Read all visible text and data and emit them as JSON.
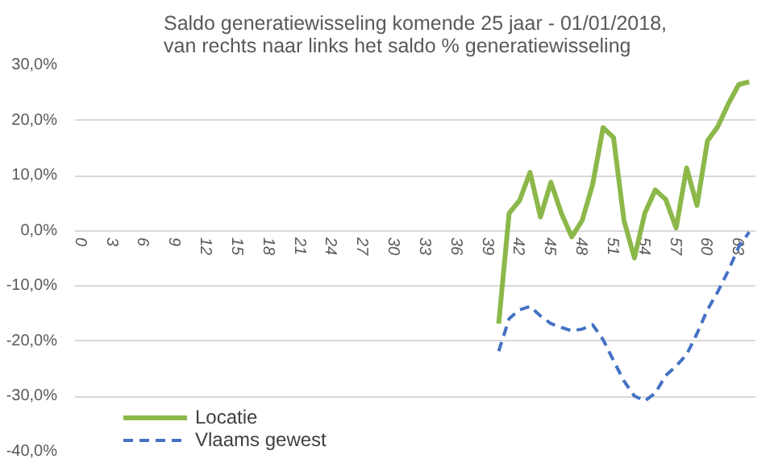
{
  "chart_data": {
    "type": "line",
    "title": "Saldo generatiewisseling komende 25 jaar - 01/01/2018,\nvan rechts naar links  het saldo % generatiewisseling",
    "categories": [
      "0",
      null,
      null,
      "3",
      null,
      null,
      "6",
      null,
      null,
      "9",
      null,
      null,
      "12",
      null,
      null,
      "15",
      null,
      null,
      "18",
      null,
      null,
      "21",
      null,
      null,
      "24",
      null,
      null,
      "27",
      null,
      null,
      "30",
      null,
      null,
      "33",
      null,
      null,
      "36",
      null,
      null,
      "39",
      null,
      null,
      "42",
      null,
      null,
      "45",
      null,
      null,
      "48",
      null,
      null,
      "51",
      null,
      null,
      "54",
      null,
      null,
      "57",
      null,
      null,
      "60",
      null,
      null,
      "63",
      null
    ],
    "series": [
      {
        "name": "Locatie",
        "color": "#8cb84a",
        "line_style": "solid",
        "values": [
          null,
          null,
          null,
          null,
          null,
          null,
          null,
          null,
          null,
          null,
          null,
          null,
          null,
          null,
          null,
          null,
          null,
          null,
          null,
          null,
          null,
          null,
          null,
          null,
          null,
          null,
          null,
          null,
          null,
          null,
          null,
          null,
          null,
          null,
          null,
          null,
          null,
          null,
          null,
          null,
          -16.8,
          3.2,
          5.5,
          10.6,
          2.5,
          8.8,
          3.2,
          -1.1,
          1.9,
          8.4,
          18.7,
          16.9,
          1.9,
          -4.9,
          3.2,
          7.4,
          5.7,
          0.5,
          11.4,
          4.6,
          16.3,
          18.9,
          23.0,
          26.5,
          27.0
        ]
      },
      {
        "name": "Vlaams gewest",
        "color": "#4472c4",
        "line_style": "dashed",
        "values": [
          null,
          null,
          null,
          null,
          null,
          null,
          null,
          null,
          null,
          null,
          null,
          null,
          null,
          null,
          null,
          null,
          null,
          null,
          null,
          null,
          null,
          null,
          null,
          null,
          null,
          null,
          null,
          null,
          null,
          null,
          null,
          null,
          null,
          null,
          null,
          null,
          null,
          null,
          null,
          null,
          -21.8,
          -15.9,
          -14.3,
          -13.7,
          -15.4,
          -16.8,
          -17.5,
          -18.1,
          -17.8,
          -17.0,
          -19.7,
          -23.5,
          -27.2,
          -29.9,
          -30.8,
          -29.4,
          -26.2,
          -24.5,
          -22.4,
          -18.6,
          -14.3,
          -11.0,
          -7.2,
          -2.9,
          -0.2
        ]
      }
    ],
    "ylim": [
      -40,
      30
    ],
    "yticks": [
      {
        "value": 30,
        "label": "30,0%"
      },
      {
        "value": 20,
        "label": "20,0%"
      },
      {
        "value": 10,
        "label": "10,0%"
      },
      {
        "value": 0,
        "label": "0,0%"
      },
      {
        "value": -10,
        "label": "-10,0%"
      },
      {
        "value": -20,
        "label": "-20,0%"
      },
      {
        "value": -30,
        "label": "-30,0%"
      },
      {
        "value": -40,
        "label": "-40,0%"
      }
    ],
    "grid": "y",
    "legend": "bottom left",
    "marker": "none"
  }
}
